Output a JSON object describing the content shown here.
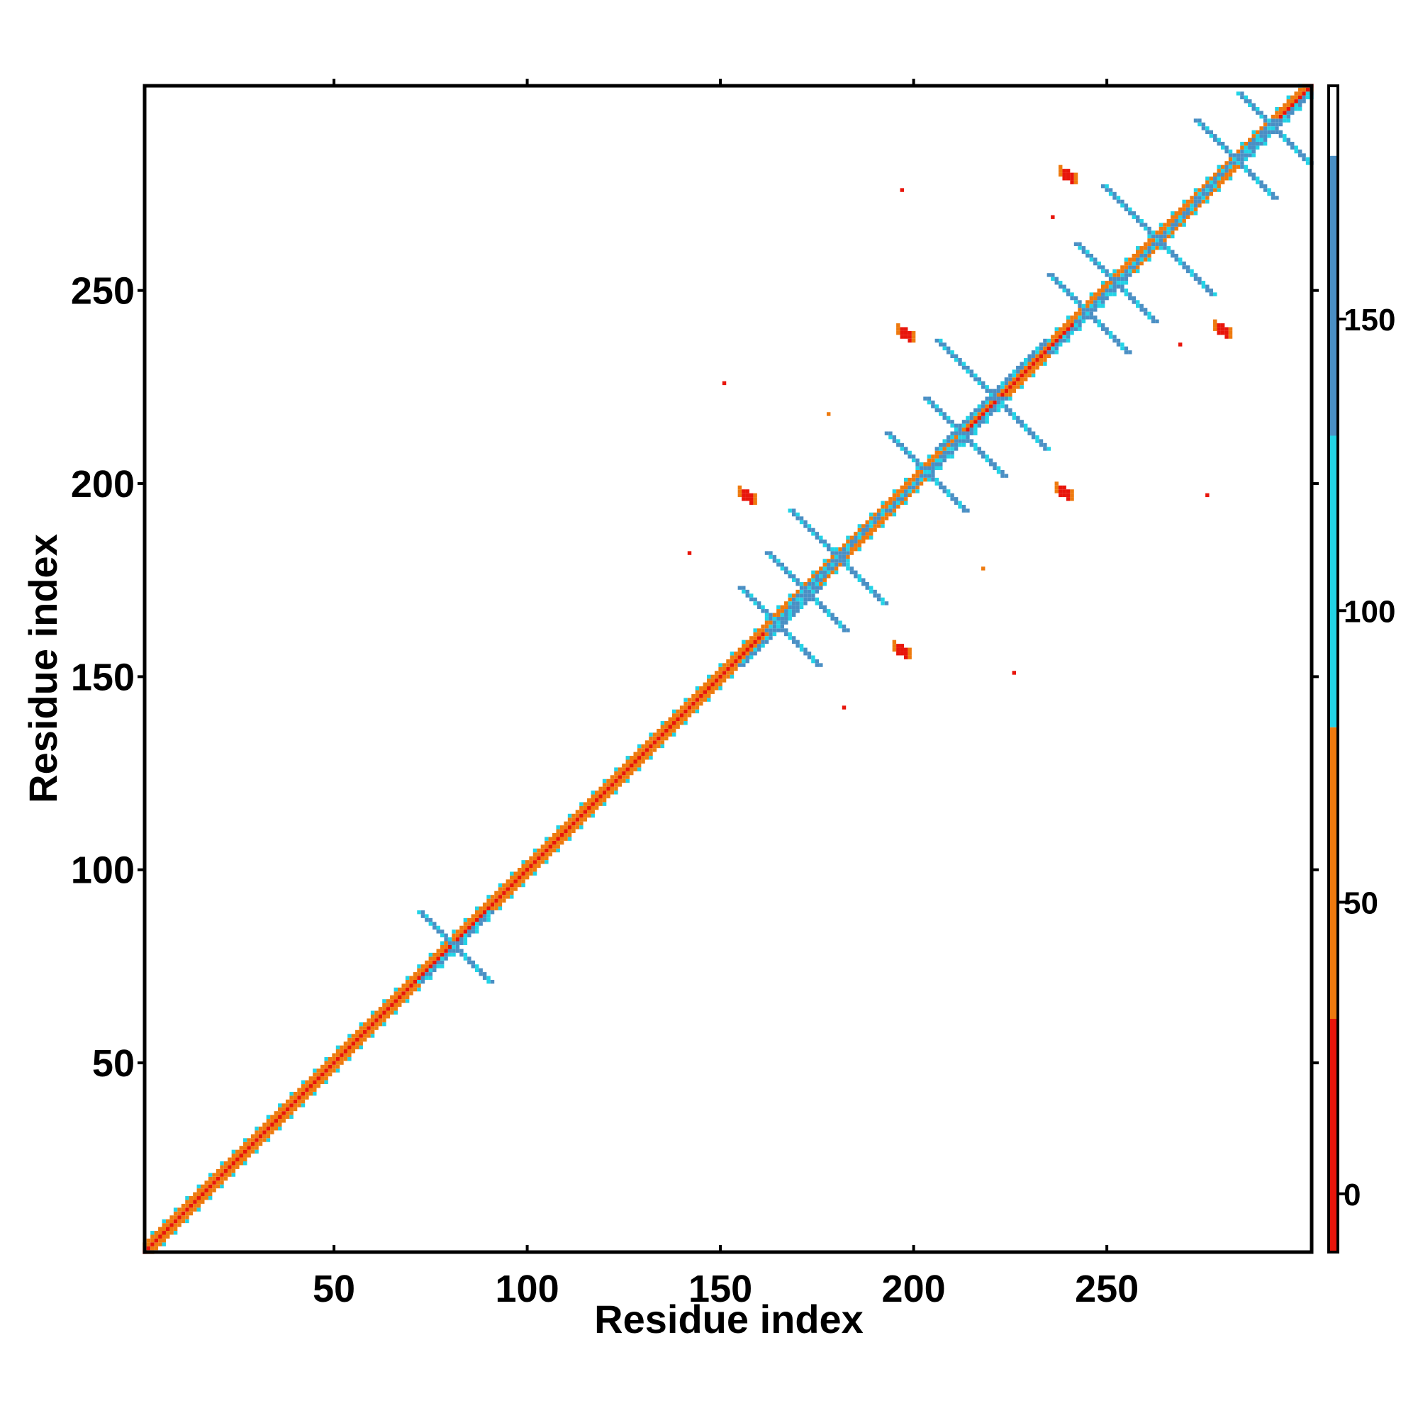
{
  "chart_data": {
    "type": "heatmap",
    "title": "",
    "xlabel": "Residue index",
    "ylabel": "Residue index",
    "xlim": [
      1,
      303
    ],
    "ylim": [
      1,
      303
    ],
    "x_ticks": [
      50,
      100,
      150,
      200,
      250
    ],
    "y_ticks": [
      50,
      100,
      150,
      200,
      250
    ],
    "colorbar": {
      "range": [
        -10,
        190
      ],
      "ticks": [
        0,
        50,
        100,
        150
      ],
      "bands": [
        {
          "from": -10,
          "to": 30,
          "color": "#e8150b"
        },
        {
          "from": 30,
          "to": 80,
          "color": "#ee7a0e"
        },
        {
          "from": 80,
          "to": 130,
          "color": "#22d3e6"
        },
        {
          "from": 130,
          "to": 178,
          "color": "#4a8fc4"
        },
        {
          "from": 178,
          "to": 190,
          "color": "#ffffff"
        }
      ]
    },
    "diagonal": {
      "from": 1,
      "to": 303
    },
    "beta_crosses": [
      {
        "x": 81,
        "y": 80,
        "len": 9
      },
      {
        "x": 165,
        "y": 163,
        "len": 10
      },
      {
        "x": 172,
        "y": 172,
        "len": 10
      },
      {
        "x": 180,
        "y": 181,
        "len": 12
      },
      {
        "x": 203,
        "y": 203,
        "len": 10
      },
      {
        "x": 213,
        "y": 212,
        "len": 10
      },
      {
        "x": 220,
        "y": 223,
        "len": 14
      },
      {
        "x": 245,
        "y": 244,
        "len": 10
      },
      {
        "x": 252,
        "y": 252,
        "len": 10
      },
      {
        "x": 263,
        "y": 263,
        "len": 14
      },
      {
        "x": 283,
        "y": 284,
        "len": 10
      },
      {
        "x": 293,
        "y": 292,
        "len": 9
      }
    ],
    "red_blobs": [
      {
        "x": 157,
        "y": 197
      },
      {
        "x": 197,
        "y": 157
      },
      {
        "x": 198,
        "y": 239
      },
      {
        "x": 239,
        "y": 198
      },
      {
        "x": 240,
        "y": 280
      },
      {
        "x": 280,
        "y": 240
      }
    ],
    "scatter_points": [
      {
        "x": 142,
        "y": 182,
        "v": 10
      },
      {
        "x": 182,
        "y": 142,
        "v": 10
      },
      {
        "x": 276,
        "y": 197,
        "v": 10
      },
      {
        "x": 197,
        "y": 276,
        "v": 10
      },
      {
        "x": 269,
        "y": 236,
        "v": 10
      },
      {
        "x": 236,
        "y": 269,
        "v": 10
      },
      {
        "x": 226,
        "y": 151,
        "v": 20
      },
      {
        "x": 151,
        "y": 226,
        "v": 20
      },
      {
        "x": 218,
        "y": 178,
        "v": 40
      },
      {
        "x": 178,
        "y": 218,
        "v": 40
      }
    ]
  }
}
